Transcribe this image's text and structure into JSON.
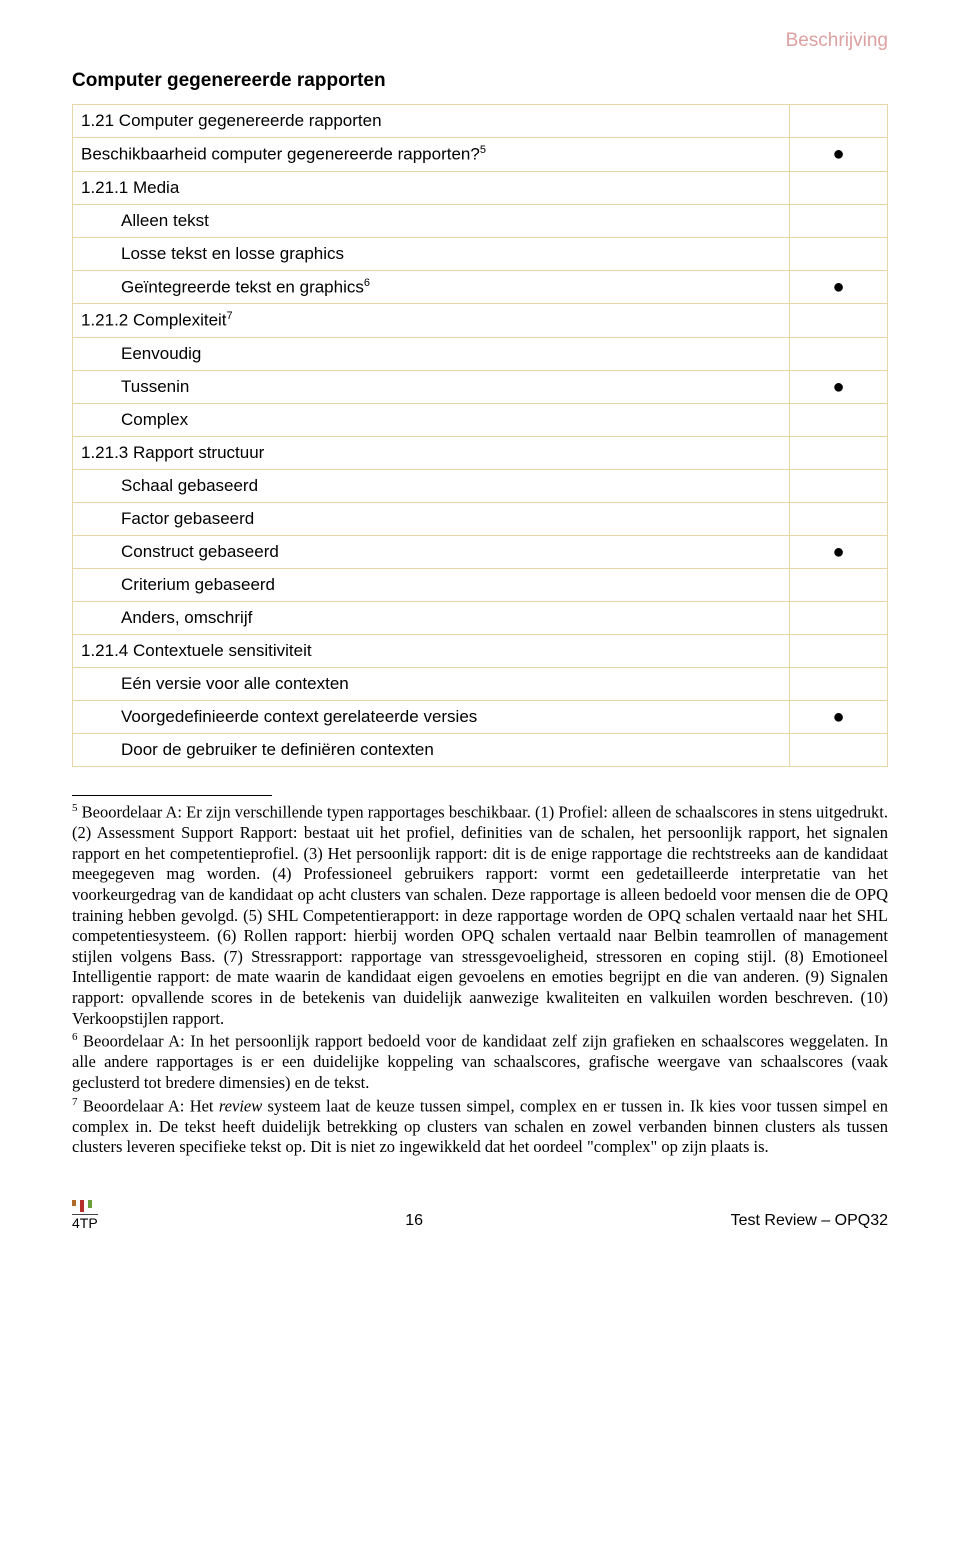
{
  "topLabel": "Beschrijving",
  "sectionTitle": "Computer gegenereerde rapporten",
  "rows": [
    {
      "text": "1.21 Computer gegenereerde rapporten",
      "indent": false,
      "mark": ""
    },
    {
      "text": "Beschikbaarheid computer gegenereerde rapporten?",
      "sup": "5",
      "indent": false,
      "mark": "●"
    },
    {
      "text": "1.21.1 Media",
      "indent": false,
      "mark": ""
    },
    {
      "text": "Alleen tekst",
      "indent": true,
      "mark": ""
    },
    {
      "text": "Losse tekst en losse graphics",
      "indent": true,
      "mark": ""
    },
    {
      "text": "Geïntegreerde tekst en graphics",
      "sup": "6",
      "indent": true,
      "mark": "●"
    },
    {
      "text": "1.21.2 Complexiteit",
      "sup": "7",
      "indent": false,
      "mark": ""
    },
    {
      "text": "Eenvoudig",
      "indent": true,
      "mark": ""
    },
    {
      "text": "Tussenin",
      "indent": true,
      "mark": "●"
    },
    {
      "text": "Complex",
      "indent": true,
      "mark": ""
    },
    {
      "text": "1.21.3 Rapport structuur",
      "indent": false,
      "mark": ""
    },
    {
      "text": "Schaal gebaseerd",
      "indent": true,
      "mark": ""
    },
    {
      "text": "Factor gebaseerd",
      "indent": true,
      "mark": ""
    },
    {
      "text": "Construct gebaseerd",
      "indent": true,
      "mark": "●"
    },
    {
      "text": "Criterium gebaseerd",
      "indent": true,
      "mark": ""
    },
    {
      "text": "Anders, omschrijf",
      "indent": true,
      "mark": ""
    },
    {
      "text": "1.21.4 Contextuele sensitiviteit",
      "indent": false,
      "mark": ""
    },
    {
      "text": "Eén versie voor alle contexten",
      "indent": true,
      "mark": ""
    },
    {
      "text": "Voorgedefinieerde context gerelateerde versies",
      "indent": true,
      "mark": "●"
    },
    {
      "text": "Door de gebruiker te definiëren contexten",
      "indent": true,
      "mark": ""
    }
  ],
  "footnotes": {
    "f5": "Beoordelaar A: Er zijn verschillende typen rapportages beschikbaar. (1) Profiel: alleen de schaalscores in stens uitgedrukt. (2) Assessment Support Rapport: bestaat uit het profiel, definities van de schalen, het persoonlijk rapport, het signalen rapport en het competentieprofiel. (3) Het persoonlijk rapport: dit is de enige rapportage die rechtstreeks aan de kandidaat meegegeven mag worden. (4) Professioneel gebruikers rapport: vormt een gedetailleerde interpretatie van het voorkeurgedrag van de kandidaat op acht clusters van schalen. Deze rapportage is alleen bedoeld voor mensen die de OPQ training hebben gevolgd. (5) SHL Competentierapport: in deze rapportage worden de OPQ schalen vertaald naar het SHL competentiesysteem. (6) Rollen rapport: hierbij worden OPQ schalen vertaald naar Belbin teamrollen of management stijlen volgens Bass. (7) Stressrapport: rapportage van stressgevoeligheid, stressoren en coping stijl. (8) Emotioneel Intelligentie rapport: de mate waarin de kandidaat eigen gevoelens en emoties begrijpt en die van anderen. (9) Signalen rapport: opvallende scores in de betekenis van duidelijk aanwezige kwaliteiten en valkuilen worden beschreven. (10) Verkoopstijlen rapport.",
    "f6": "Beoordelaar A: In het persoonlijk rapport bedoeld voor de kandidaat zelf zijn grafieken en schaalscores weggelaten. In alle andere rapportages is er een duidelijke koppeling van schaalscores, grafische weergave van schaalscores (vaak geclusterd tot bredere dimensies) en de tekst.",
    "f7": "Beoordelaar A: Het review systeem laat de keuze tussen simpel, complex en er tussen in. Ik kies voor tussen simpel en complex in. De tekst heeft duidelijk betrekking op clusters van schalen en zowel verbanden binnen clusters als tussen clusters leveren specifieke tekst op. Dit is niet zo ingewikkeld dat het oordeel \"complex\" op zijn plaats is.",
    "f7_italic_word": "review"
  },
  "footer": {
    "logo": "4TP",
    "pageNum": "16",
    "right": "Test Review – OPQ32"
  }
}
